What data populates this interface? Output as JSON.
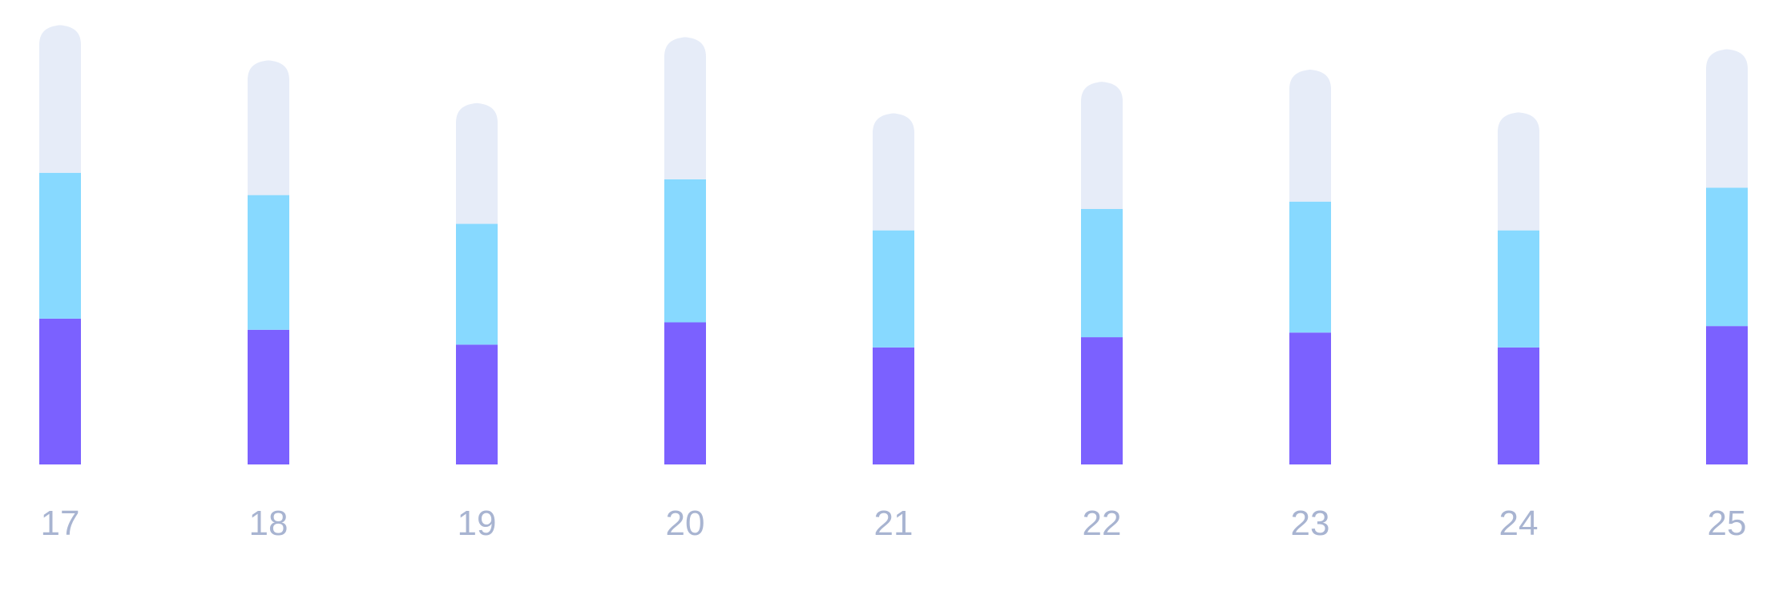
{
  "chart_data": {
    "type": "bar",
    "stacked": true,
    "categories": [
      "17",
      "18",
      "19",
      "20",
      "21",
      "22",
      "23",
      "24",
      "25"
    ],
    "series": [
      {
        "color": "#7b61ff",
        "values": [
          157,
          145,
          129,
          153,
          126,
          137,
          142,
          126,
          149
        ]
      },
      {
        "color": "#87d9ff",
        "values": [
          157,
          145,
          130,
          154,
          126,
          138,
          141,
          126,
          149
        ]
      },
      {
        "color": "#e6ecf8",
        "values": [
          159,
          145,
          130,
          153,
          126,
          137,
          142,
          127,
          149
        ]
      }
    ],
    "ylim": [
      0,
      500
    ],
    "grid": false,
    "legend": false,
    "axis_label_color": "#a8b4d1"
  }
}
